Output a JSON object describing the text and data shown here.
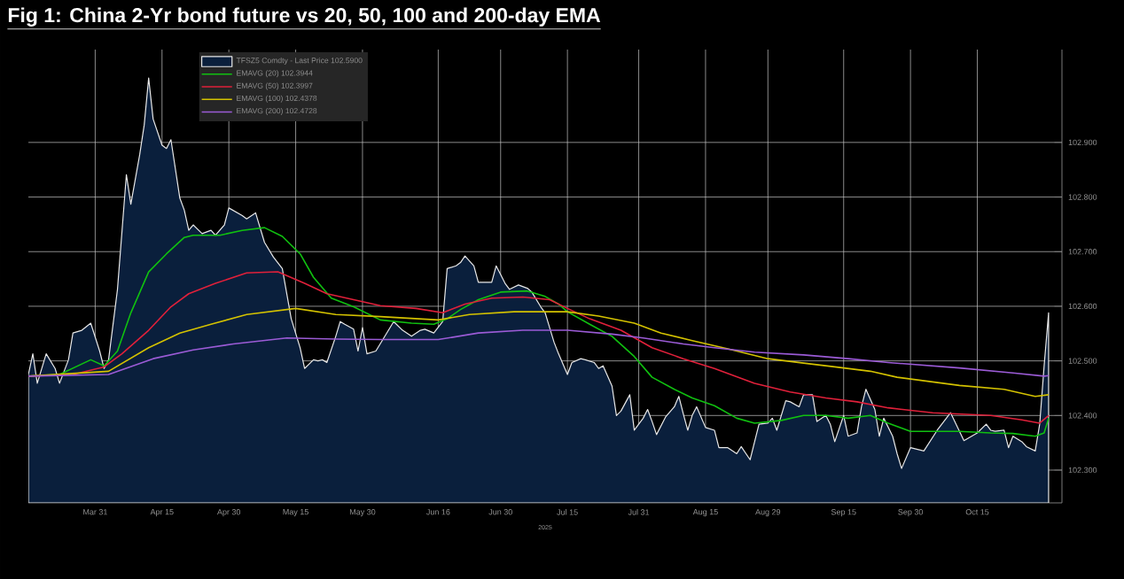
{
  "chart_data": {
    "type": "line",
    "title": "Fig 1:   China 2-Yr bond future vs 20, 50, 100 and 200-day EMA",
    "xlabel": "2025",
    "xlim": [
      "2025-03-16",
      "2025-11-03"
    ],
    "ylim": [
      102.24,
      103.07
    ],
    "xticks": [
      {
        "value": "2025-03-31",
        "label": "Mar 31"
      },
      {
        "value": "2025-04-15",
        "label": "Apr 15"
      },
      {
        "value": "2025-04-30",
        "label": "Apr 30"
      },
      {
        "value": "2025-05-15",
        "label": "May 15"
      },
      {
        "value": "2025-05-30",
        "label": "May 30"
      },
      {
        "value": "2025-06-16",
        "label": "Jun 16"
      },
      {
        "value": "2025-06-30",
        "label": "Jun 30"
      },
      {
        "value": "2025-07-15",
        "label": "Jul 15"
      },
      {
        "value": "2025-07-31",
        "label": "Jul 31"
      },
      {
        "value": "2025-08-15",
        "label": "Aug 15"
      },
      {
        "value": "2025-08-29",
        "label": "Aug 29"
      },
      {
        "value": "2025-09-15",
        "label": "Sep 15"
      },
      {
        "value": "2025-09-30",
        "label": "Sep 30"
      },
      {
        "value": "2025-10-15",
        "label": "Oct 15"
      }
    ],
    "yticks": [
      {
        "value": 102.3,
        "label": "102.300"
      },
      {
        "value": 102.4,
        "label": "102.400"
      },
      {
        "value": 102.5,
        "label": "102.500"
      },
      {
        "value": 102.6,
        "label": "102.600"
      },
      {
        "value": 102.7,
        "label": "102.700"
      },
      {
        "value": 102.8,
        "label": "102.800"
      },
      {
        "value": 102.9,
        "label": "102.900"
      }
    ],
    "grid": true,
    "legend": "top left",
    "marker": "none",
    "series": [
      {
        "name": "TFSZ5 Comdty - Last Price 102.5900",
        "type": "area",
        "color": "#e8e8e8",
        "x": [
          "2025-03-16",
          "2025-03-17",
          "2025-03-18",
          "2025-03-20",
          "2025-03-22",
          "2025-03-23",
          "2025-03-25",
          "2025-03-26",
          "2025-03-28",
          "2025-03-30",
          "2025-04-01",
          "2025-04-02",
          "2025-04-03",
          "2025-04-05",
          "2025-04-07",
          "2025-04-08",
          "2025-04-10",
          "2025-04-11",
          "2025-04-12",
          "2025-04-13",
          "2025-04-15",
          "2025-04-16",
          "2025-04-17",
          "2025-04-19",
          "2025-04-20",
          "2025-04-21",
          "2025-04-22",
          "2025-04-24",
          "2025-04-26",
          "2025-04-27",
          "2025-04-29",
          "2025-04-30",
          "2025-05-03",
          "2025-05-04",
          "2025-05-06",
          "2025-05-08",
          "2025-05-10",
          "2025-05-12",
          "2025-05-14",
          "2025-05-16",
          "2025-05-17",
          "2025-05-19",
          "2025-05-20",
          "2025-05-21",
          "2025-05-22",
          "2025-05-24",
          "2025-05-25",
          "2025-05-26",
          "2025-05-28",
          "2025-05-29",
          "2025-05-30",
          "2025-05-31",
          "2025-06-02",
          "2025-06-04",
          "2025-06-06",
          "2025-06-08",
          "2025-06-10",
          "2025-06-12",
          "2025-06-13",
          "2025-06-15",
          "2025-06-17",
          "2025-06-18",
          "2025-06-20",
          "2025-06-21",
          "2025-06-22",
          "2025-06-24",
          "2025-06-25",
          "2025-06-27",
          "2025-06-28",
          "2025-06-29",
          "2025-07-01",
          "2025-07-02",
          "2025-07-04",
          "2025-07-06",
          "2025-07-07",
          "2025-07-09",
          "2025-07-10",
          "2025-07-12",
          "2025-07-13",
          "2025-07-15",
          "2025-07-16",
          "2025-07-18",
          "2025-07-19",
          "2025-07-21",
          "2025-07-22",
          "2025-07-23",
          "2025-07-25",
          "2025-07-26",
          "2025-07-27",
          "2025-07-29",
          "2025-07-30",
          "2025-08-01",
          "2025-08-02",
          "2025-08-03",
          "2025-08-04",
          "2025-08-06",
          "2025-08-08",
          "2025-08-09",
          "2025-08-10",
          "2025-08-11",
          "2025-08-12",
          "2025-08-13",
          "2025-08-15",
          "2025-08-17",
          "2025-08-18",
          "2025-08-20",
          "2025-08-22",
          "2025-08-23",
          "2025-08-25",
          "2025-08-27",
          "2025-08-29",
          "2025-08-30",
          "2025-08-31",
          "2025-09-02",
          "2025-09-03",
          "2025-09-05",
          "2025-09-06",
          "2025-09-08",
          "2025-09-09",
          "2025-09-11",
          "2025-09-12",
          "2025-09-13",
          "2025-09-15",
          "2025-09-16",
          "2025-09-18",
          "2025-09-19",
          "2025-09-20",
          "2025-09-22",
          "2025-09-23",
          "2025-09-24",
          "2025-09-26",
          "2025-09-27",
          "2025-09-28",
          "2025-09-30",
          "2025-10-03",
          "2025-10-06",
          "2025-10-09",
          "2025-10-12",
          "2025-10-15",
          "2025-10-17",
          "2025-10-18",
          "2025-10-19",
          "2025-10-21",
          "2025-10-22",
          "2025-10-23",
          "2025-10-25",
          "2025-10-26",
          "2025-10-28",
          "2025-10-29",
          "2025-10-30",
          "2025-10-31"
        ],
        "values": [
          102.475,
          102.513,
          102.459,
          102.513,
          102.486,
          102.459,
          102.502,
          102.551,
          102.556,
          102.569,
          102.518,
          102.486,
          102.502,
          102.631,
          102.841,
          102.787,
          102.878,
          102.932,
          103.018,
          102.943,
          102.895,
          102.889,
          102.905,
          102.798,
          102.776,
          102.739,
          102.749,
          102.733,
          102.739,
          102.73,
          102.749,
          102.78,
          102.766,
          102.76,
          102.771,
          102.717,
          102.69,
          102.669,
          102.577,
          102.524,
          102.486,
          102.502,
          102.5,
          102.502,
          102.497,
          102.545,
          102.572,
          102.567,
          102.558,
          102.518,
          102.561,
          102.513,
          102.518,
          102.545,
          102.572,
          102.556,
          102.545,
          102.556,
          102.558,
          102.551,
          102.572,
          102.669,
          102.674,
          102.68,
          102.692,
          102.674,
          102.644,
          102.644,
          102.644,
          102.674,
          102.642,
          102.631,
          102.639,
          102.633,
          102.626,
          102.599,
          102.588,
          102.534,
          102.513,
          102.475,
          102.497,
          102.504,
          102.502,
          102.497,
          102.486,
          102.491,
          102.454,
          102.4,
          102.408,
          102.438,
          102.373,
          102.395,
          102.411,
          102.389,
          102.365,
          102.397,
          102.416,
          102.435,
          102.403,
          102.373,
          102.4,
          102.416,
          102.378,
          102.373,
          102.341,
          102.341,
          102.33,
          102.343,
          102.319,
          102.384,
          102.386,
          102.395,
          102.373,
          102.427,
          102.425,
          102.416,
          102.438,
          102.438,
          102.389,
          102.4,
          102.384,
          102.352,
          102.4,
          102.362,
          102.368,
          102.416,
          102.448,
          102.411,
          102.362,
          102.395,
          102.362,
          102.33,
          102.303,
          102.341,
          102.335,
          102.373,
          102.405,
          102.354,
          102.368,
          102.384,
          102.373,
          102.371,
          102.373,
          102.341,
          102.362,
          102.352,
          102.343,
          102.335,
          102.384,
          102.491,
          102.588
        ]
      },
      {
        "name": "EMAVG (20) 102.3944",
        "color": "#10c010",
        "x": [
          "2025-03-16",
          "2025-03-23",
          "2025-03-30",
          "2025-04-02",
          "2025-04-05",
          "2025-04-08",
          "2025-04-12",
          "2025-04-16",
          "2025-04-20",
          "2025-04-22",
          "2025-04-28",
          "2025-05-03",
          "2025-05-08",
          "2025-05-12",
          "2025-05-16",
          "2025-05-19",
          "2025-05-23",
          "2025-05-28",
          "2025-06-03",
          "2025-06-10",
          "2025-06-15",
          "2025-06-18",
          "2025-06-21",
          "2025-06-25",
          "2025-06-30",
          "2025-07-06",
          "2025-07-10",
          "2025-07-13",
          "2025-07-15",
          "2025-07-20",
          "2025-07-25",
          "2025-07-30",
          "2025-08-03",
          "2025-08-08",
          "2025-08-12",
          "2025-08-17",
          "2025-08-22",
          "2025-08-26",
          "2025-09-01",
          "2025-09-06",
          "2025-09-11",
          "2025-09-16",
          "2025-09-21",
          "2025-09-25",
          "2025-09-30",
          "2025-10-11",
          "2025-10-18",
          "2025-10-23",
          "2025-10-28",
          "2025-10-30",
          "2025-10-31"
        ],
        "values": [
          102.472,
          102.475,
          102.502,
          102.491,
          102.518,
          102.588,
          102.663,
          102.696,
          102.726,
          102.73,
          102.73,
          102.739,
          102.744,
          102.728,
          102.696,
          102.653,
          102.615,
          102.599,
          102.575,
          102.569,
          102.567,
          102.577,
          102.594,
          102.612,
          102.626,
          102.628,
          102.618,
          102.604,
          102.59,
          102.567,
          102.545,
          102.508,
          102.47,
          102.448,
          102.432,
          102.418,
          102.395,
          102.386,
          102.391,
          102.4,
          102.4,
          102.395,
          102.4,
          102.386,
          102.371,
          102.371,
          102.368,
          102.367,
          102.362,
          102.368,
          102.395
        ]
      },
      {
        "name": "EMAVG (50) 102.3997",
        "color": "#e0203a",
        "x": [
          "2025-03-16",
          "2025-03-26",
          "2025-04-02",
          "2025-04-06",
          "2025-04-12",
          "2025-04-17",
          "2025-04-21",
          "2025-04-27",
          "2025-05-04",
          "2025-05-11",
          "2025-05-17",
          "2025-05-22",
          "2025-05-28",
          "2025-06-03",
          "2025-06-11",
          "2025-06-17",
          "2025-06-22",
          "2025-06-28",
          "2025-07-05",
          "2025-07-11",
          "2025-07-15",
          "2025-07-20",
          "2025-07-27",
          "2025-08-03",
          "2025-08-10",
          "2025-08-17",
          "2025-08-26",
          "2025-09-03",
          "2025-09-11",
          "2025-09-18",
          "2025-09-25",
          "2025-10-05",
          "2025-10-18",
          "2025-10-25",
          "2025-10-29",
          "2025-10-31"
        ],
        "values": [
          102.472,
          102.475,
          102.489,
          102.513,
          102.556,
          102.599,
          102.623,
          102.642,
          102.661,
          102.663,
          102.642,
          102.623,
          102.612,
          102.601,
          102.596,
          102.588,
          102.604,
          102.615,
          102.617,
          102.612,
          102.596,
          102.577,
          102.556,
          102.524,
          102.504,
          102.486,
          102.459,
          102.443,
          102.432,
          102.425,
          102.414,
          102.405,
          102.4,
          102.392,
          102.386,
          102.4
        ]
      },
      {
        "name": "EMAVG (100) 102.4378",
        "color": "#d4c200",
        "x": [
          "2025-03-16",
          "2025-04-03",
          "2025-04-12",
          "2025-04-19",
          "2025-04-26",
          "2025-05-04",
          "2025-05-15",
          "2025-05-24",
          "2025-06-03",
          "2025-06-16",
          "2025-06-23",
          "2025-07-03",
          "2025-07-15",
          "2025-07-22",
          "2025-07-30",
          "2025-08-05",
          "2025-08-12",
          "2025-08-20",
          "2025-08-29",
          "2025-09-06",
          "2025-09-13",
          "2025-09-21",
          "2025-09-27",
          "2025-10-11",
          "2025-10-21",
          "2025-10-28",
          "2025-10-31"
        ],
        "values": [
          102.472,
          102.481,
          102.524,
          102.551,
          102.567,
          102.585,
          102.596,
          102.585,
          102.581,
          102.575,
          102.585,
          102.59,
          102.59,
          102.582,
          102.569,
          102.551,
          102.537,
          102.522,
          102.504,
          102.496,
          102.489,
          102.481,
          102.47,
          102.455,
          102.448,
          102.435,
          102.438
        ]
      },
      {
        "name": "EMAVG (200) 102.4728",
        "color": "#9b5bd6",
        "x": [
          "2025-03-16",
          "2025-04-03",
          "2025-04-13",
          "2025-04-22",
          "2025-05-01",
          "2025-05-13",
          "2025-05-24",
          "2025-06-03",
          "2025-06-16",
          "2025-06-25",
          "2025-07-05",
          "2025-07-15",
          "2025-07-25",
          "2025-08-01",
          "2025-08-10",
          "2025-08-17",
          "2025-08-26",
          "2025-09-06",
          "2025-09-16",
          "2025-09-25",
          "2025-10-11",
          "2025-10-23",
          "2025-10-30",
          "2025-10-31"
        ],
        "values": [
          102.472,
          102.475,
          102.504,
          102.52,
          102.531,
          102.542,
          102.54,
          102.539,
          102.539,
          102.551,
          102.556,
          102.556,
          102.549,
          102.542,
          102.531,
          102.524,
          102.516,
          102.511,
          102.504,
          102.497,
          102.487,
          102.478,
          102.472,
          102.473
        ]
      }
    ]
  }
}
